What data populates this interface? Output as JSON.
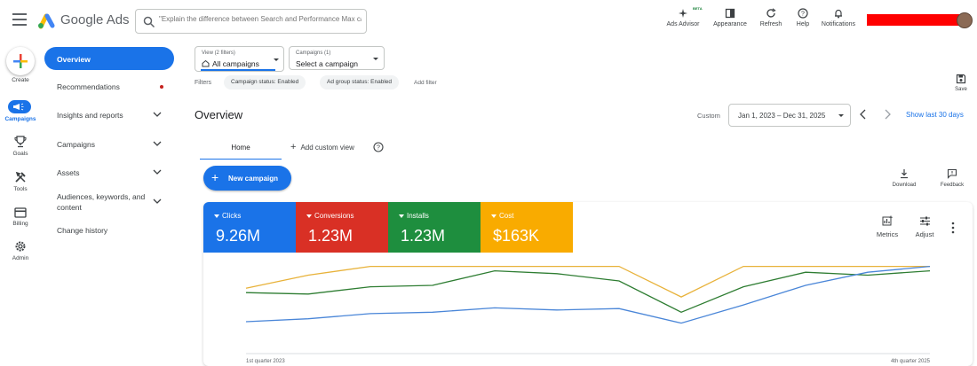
{
  "header": {
    "product_name": "Google Ads",
    "search_placeholder": "\"Explain the difference between Search and Performance Max cam...",
    "actions": [
      {
        "label": "Ads Advisor",
        "icon": "sparkle-icon",
        "badge": "BETA"
      },
      {
        "label": "Appearance",
        "icon": "appearance-icon"
      },
      {
        "label": "Refresh",
        "icon": "refresh-icon"
      },
      {
        "label": "Help",
        "icon": "help-icon"
      },
      {
        "label": "Notifications",
        "icon": "bell-icon"
      }
    ],
    "account_redacted_color": "#ff0000"
  },
  "rail": {
    "create": "Create",
    "campaigns": "Campaigns",
    "goals": "Goals",
    "tools": "Tools",
    "billing": "Billing",
    "admin": "Admin"
  },
  "nav": {
    "items": [
      {
        "label": "Overview",
        "active": true
      },
      {
        "label": "Recommendations",
        "dot": true
      },
      {
        "label": "Insights and reports",
        "expandable": true
      },
      {
        "label": "Campaigns",
        "expandable": true
      },
      {
        "label": "Assets",
        "expandable": true
      },
      {
        "label": "Audiences, keywords, and content",
        "expandable": true
      },
      {
        "label": "Change history"
      }
    ],
    "audiences_line1": "Audiences, keywords, and",
    "audiences_line2": "content"
  },
  "filters": {
    "view_small": "View (2 filters)",
    "view_value": "All campaigns",
    "campaigns_small": "Campaigns (1)",
    "campaigns_value": "Select a campaign",
    "label": "Filters",
    "chips": [
      "Campaign status: Enabled",
      "Ad group status: Enabled"
    ],
    "add_filter": "Add filter",
    "save": "Save"
  },
  "overview": {
    "title": "Overview",
    "custom_label": "Custom",
    "date_range": "Jan 1, 2023 – Dec 31, 2025",
    "show_last": "Show last 30 days",
    "tab_home": "Home",
    "tab_add": "Add custom view",
    "new_campaign": "New campaign",
    "download": "Download",
    "feedback": "Feedback"
  },
  "metrics": [
    {
      "name": "Clicks",
      "value": "9.26M",
      "color": "#1a73e8"
    },
    {
      "name": "Conversions",
      "value": "1.23M",
      "color": "#d93025"
    },
    {
      "name": "Installs",
      "value": "1.23M",
      "color": "#1e8e3e"
    },
    {
      "name": "Cost",
      "value": "$163K",
      "color": "#f9ab00"
    }
  ],
  "card_tools": {
    "metrics": "Metrics",
    "adjust": "Adjust"
  },
  "chart_data": {
    "type": "line",
    "x_labels": {
      "start": "1st quarter 2023",
      "end": "4th quarter 2025"
    },
    "x": [
      1,
      2,
      3,
      4,
      5,
      6,
      7,
      8,
      9,
      10,
      11,
      12
    ],
    "ylim": [
      0,
      100
    ],
    "grid": false,
    "series": [
      {
        "name": "Clicks",
        "color": "#4a86d8",
        "values": [
          22,
          26,
          33,
          35,
          41,
          38,
          40,
          20,
          45,
          72,
          90,
          98
        ]
      },
      {
        "name": "Conversions",
        "color": "#e8b23a",
        "values": [
          68,
          86,
          98,
          98,
          98,
          98,
          98,
          56,
          98,
          98,
          98,
          98
        ]
      },
      {
        "name": "Installs",
        "color": "#2e7d32",
        "values": [
          62,
          60,
          70,
          72,
          92,
          88,
          78,
          35,
          70,
          90,
          86,
          92
        ]
      }
    ]
  }
}
